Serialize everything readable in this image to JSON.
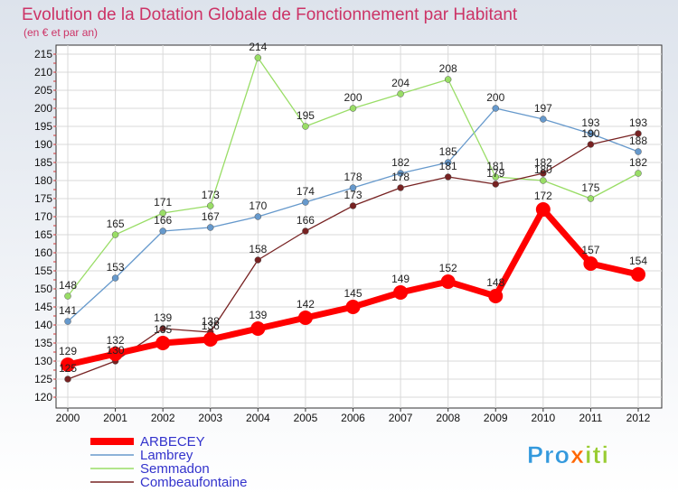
{
  "chart_data": {
    "type": "line",
    "title": "Evolution de la Dotation Globale de Fonctionnement par Habitant",
    "subtitle": "(en € et par an)",
    "xlabel": "",
    "ylabel": "",
    "categories": [
      "2000",
      "2001",
      "2002",
      "2003",
      "2004",
      "2005",
      "2006",
      "2007",
      "2008",
      "2009",
      "2010",
      "2011",
      "2012"
    ],
    "ylim": [
      120,
      215
    ],
    "yticks": [
      120,
      125,
      130,
      135,
      140,
      145,
      150,
      155,
      160,
      165,
      170,
      175,
      180,
      185,
      190,
      195,
      200,
      205,
      210,
      215
    ],
    "grid": true,
    "legend_position": "bottom-left",
    "series": [
      {
        "name": "ARBECEY",
        "color": "#ff0000",
        "values": [
          129,
          132,
          135,
          136,
          139,
          142,
          145,
          149,
          152,
          148,
          172,
          157,
          154
        ]
      },
      {
        "name": "Lambrey",
        "color": "#6699cc",
        "values": [
          141,
          153,
          166,
          167,
          170,
          174,
          178,
          182,
          185,
          200,
          197,
          193,
          188
        ]
      },
      {
        "name": "Semmadon",
        "color": "#99dd66",
        "values": [
          148,
          165,
          171,
          173,
          214,
          195,
          200,
          204,
          208,
          181,
          180,
          175,
          182
        ]
      },
      {
        "name": "Combeaufontaine",
        "color": "#772222",
        "values": [
          125,
          130,
          139,
          138,
          158,
          166,
          173,
          178,
          181,
          179,
          182,
          190,
          193
        ]
      }
    ]
  },
  "brand": {
    "logo_text": "Proxiti"
  }
}
